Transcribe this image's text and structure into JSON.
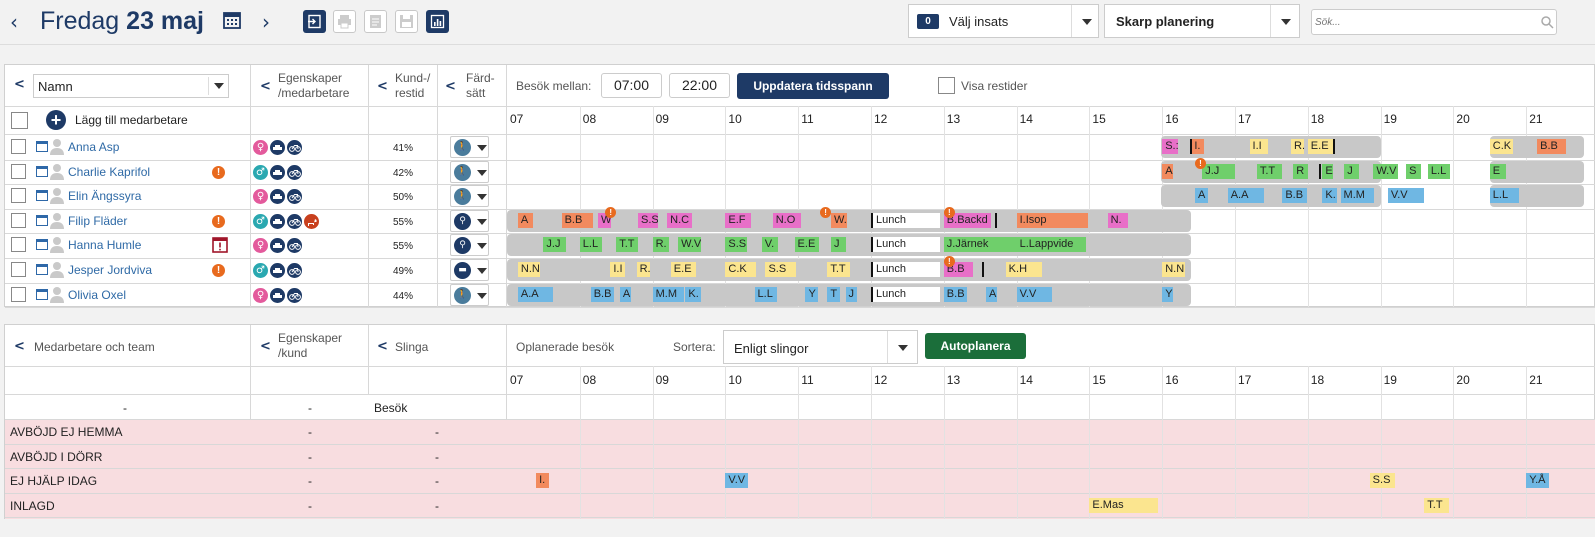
{
  "header": {
    "prev_arrow": "‹",
    "next_arrow": "›",
    "weekday": "Fredag",
    "date": "23 maj",
    "insats_count": "0",
    "insats_label": "Välj insats",
    "plan_label": "Skarp planering",
    "search_placeholder": "Sök..."
  },
  "top_panel": {
    "name_select": "Namn",
    "col_egenskaper": "Egenskaper /medarbetare",
    "col_kund": "Kund-/ restid",
    "col_fard": "Färd- sätt",
    "besok_label": "Besök mellan:",
    "time_from": "07:00",
    "time_to": "22:00",
    "update_button": "Uppdatera tidsspann",
    "visa_restider": "Visa restider",
    "add_employee": "Lägg till medarbetare",
    "hours": [
      "07",
      "08",
      "09",
      "10",
      "11",
      "12",
      "13",
      "14",
      "15",
      "16",
      "17",
      "18",
      "19",
      "20",
      "21"
    ],
    "employees": [
      {
        "name": "Anna Asp",
        "pct": "41%",
        "warn": false,
        "gender": "female",
        "transport": "walk"
      },
      {
        "name": "Charlie Kaprifol",
        "pct": "42%",
        "warn": true,
        "gender": "male",
        "transport": "walk"
      },
      {
        "name": "Elin Ängssyra",
        "pct": "50%",
        "warn": false,
        "gender": "female",
        "transport": "walk"
      },
      {
        "name": "Filip Fläder",
        "pct": "55%",
        "warn": true,
        "gender": "male",
        "transport": "bike"
      },
      {
        "name": "Hanna Humle",
        "pct": "55%",
        "warn": false,
        "gender": "female",
        "transport": "bike"
      },
      {
        "name": "Jesper Jordviva",
        "pct": "49%",
        "warn": true,
        "gender": "male",
        "transport": "car"
      },
      {
        "name": "Olivia Oxel",
        "pct": "44%",
        "warn": false,
        "gender": "female",
        "transport": "walk"
      }
    ],
    "lunch_label": "Lunch",
    "visits": [
      [
        "S.:",
        "I.",
        "I.I",
        "R.",
        "E.E",
        "C.K",
        "B.B"
      ],
      [
        "A",
        "J.J",
        "T.T",
        "R",
        "E",
        "J",
        "W.V",
        "S",
        "L.L",
        "E"
      ],
      [
        "A",
        "A.A",
        "B.B",
        "K.",
        "M.M",
        "V.V",
        "L.L"
      ],
      [
        "A",
        "B.B",
        "W",
        "S.S",
        "N.C",
        "E.F",
        "N.O",
        "W.",
        "B.Backd",
        "I.Isop",
        "N."
      ],
      [
        "J.J",
        "L.L",
        "T.T",
        "R.",
        "W.V",
        "S.S",
        "V.",
        "E.E",
        "J",
        "J.Järnek",
        "L.Lappvide"
      ],
      [
        "N.N",
        "I.I",
        "R.",
        "E.E",
        "C.K",
        "S.S",
        "T.T",
        "B.B",
        "K.H",
        "N.N"
      ],
      [
        "A.A",
        "B.B",
        "A",
        "M.M",
        "K.",
        "L.L",
        "Y",
        "T",
        "J",
        "B.B",
        "A",
        "V.V",
        "Y"
      ]
    ]
  },
  "bottom_panel": {
    "col_medarbetare": "Medarbetare och team",
    "col_egenskaper": "Egenskaper /kund",
    "col_slinga": "Slinga",
    "unplanned_label": "Oplanerade besök",
    "sort_label": "Sortera:",
    "sort_value": "Enligt slingor",
    "autoplan_button": "Autoplanera",
    "hours": [
      "07",
      "08",
      "09",
      "10",
      "11",
      "12",
      "13",
      "14",
      "15",
      "16",
      "17",
      "18",
      "19",
      "20",
      "21"
    ],
    "dash": "-",
    "besok": "Besök",
    "rows": [
      {
        "label": "AVBÖJD EJ HEMMA",
        "a": "-",
        "b": "-"
      },
      {
        "label": "AVBÖJD I DÖRR",
        "a": "-",
        "b": "-"
      },
      {
        "label": "EJ HJÄLP IDAG",
        "a": "-",
        "b": "-"
      },
      {
        "label": "INLAGD",
        "a": "-",
        "b": "-"
      }
    ],
    "visits": [
      "I.",
      "V.V",
      "S.S",
      "Y.Å",
      "E.Mas",
      "T.T"
    ]
  },
  "colors": {
    "accent": "#1e3a66",
    "green": "#1b6e3a",
    "warning": "#e86a1e",
    "female": "#e35a9c",
    "male": "#2aa8b0"
  }
}
